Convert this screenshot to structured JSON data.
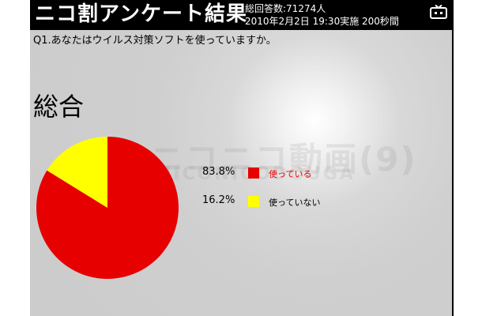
{
  "header": {
    "title": "ニコ割アンケート結果",
    "meta_line1": "総回答数:71274人",
    "meta_line2": "2010年2月2日 19:30実施 200秒間"
  },
  "question": "Q1.あなたはウイルス対策ソフトを使っていますか。",
  "section_label": "総合",
  "watermark": {
    "line1": "ニコニコ動画(9)",
    "line2": "NICONICODOUGA"
  },
  "colors": {
    "used": "#e60000",
    "not_used": "#ffff00",
    "used_label": "#e60000",
    "not_used_label": "#000000"
  },
  "chart_data": {
    "type": "pie",
    "title": "",
    "slices": [
      {
        "label": "使っている",
        "value": 83.8,
        "display": "83.8%",
        "color": "#e60000"
      },
      {
        "label": "使っていない",
        "value": 16.2,
        "display": "16.2%",
        "color": "#ffff00"
      }
    ]
  }
}
